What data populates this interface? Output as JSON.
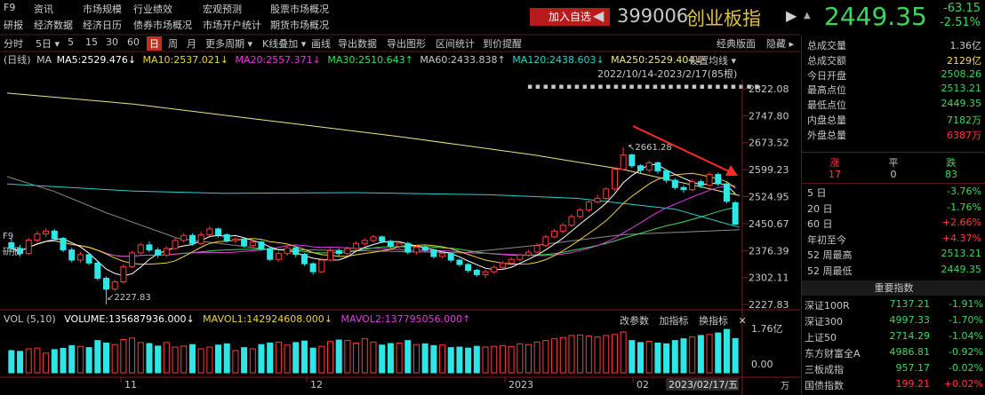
{
  "nav": {
    "col1": [
      "F9",
      "研报"
    ],
    "col2": [
      "资讯",
      "经济数据"
    ],
    "col3": [
      "市场规模",
      "经济日历"
    ],
    "col4": [
      "行业绩效",
      "债券市场概况"
    ],
    "col5": [
      "宏观预测",
      "市场开户统计"
    ],
    "col6": [
      "股票市场概况",
      "期货市场概况"
    ]
  },
  "header": {
    "add_watch": "加入自选",
    "prev_arrow": "◀",
    "next_arrow": "▶",
    "code": "399006",
    "name": "创业板指",
    "price": "2449.35",
    "change": "-63.15",
    "change_pct": "-2.51%",
    "bell": "▲"
  },
  "toolbar": {
    "items": [
      "分时",
      "5日 ▾",
      "5",
      "15",
      "30",
      "60",
      "日",
      "周",
      "月",
      "更多周期 ▾",
      "K线叠加 ▾",
      "画线",
      "导出数据",
      "导出图形",
      "区间统计",
      "到价提醒",
      "经典版面",
      "隐藏 ▸"
    ],
    "active": "日"
  },
  "ma": {
    "label": "(日线)",
    "ma": "MA",
    "ma5": "MA5:2529.476↓",
    "ma10": "MA10:2537.021↓",
    "ma20": "MA20:2557.371↓",
    "ma30": "MA30:2510.643↑",
    "ma60": "MA60:2433.838↑",
    "ma120": "MA120:2438.603↓",
    "ma250": "MA250:2529.404↓",
    "set_ma": "设置均线 ▾",
    "date_range": "2022/10/14-2023/2/17(85根)",
    "dots": "▪▪▪▪▪▪▪▪▪▪▪▪▪▪▪▪▪▪▪▪▪▪▪▪▪▪▪▪▪▪"
  },
  "f9_labels": [
    "F9",
    "研报"
  ],
  "price_axis": [
    "2822.08",
    "2747.80",
    "2673.52",
    "2599.23",
    "2524.95",
    "2450.67",
    "2376.39",
    "2302.11",
    "2227.83"
  ],
  "annotations": {
    "high": "2661.28",
    "low": "2227.83"
  },
  "time_axis": [
    "11",
    "12",
    "2023",
    "02"
  ],
  "date_tag": "2023/02/17/五",
  "volume": {
    "label": "VOL (5,10)",
    "vol": "VOLUME:135687936.000↓",
    "mavol1": "MAVOL1:142924608.000↓",
    "mavol2": "MAVOL2:137795056.000↑",
    "tools": [
      "改参数",
      "加指标",
      "换指标",
      "✕"
    ],
    "axis": [
      "1.76亿",
      "0.00"
    ],
    "axis_unit": "万"
  },
  "stats": [
    {
      "label": "总成交量",
      "value": "1.36亿",
      "color": "#c8c8c8"
    },
    {
      "label": "总成交额",
      "value": "2129亿",
      "color": "#ffd84a"
    },
    {
      "label": "今日开盘",
      "value": "2508.26",
      "color": "#3dd65b"
    },
    {
      "label": "最高点位",
      "value": "2513.21",
      "color": "#3dd65b"
    },
    {
      "label": "最低点位",
      "value": "2449.35",
      "color": "#3dd65b"
    },
    {
      "label": "内盘总量",
      "value": "7182万",
      "color": "#3dd65b"
    },
    {
      "label": "外盘总量",
      "value": "6387万",
      "color": "#ff3b3b"
    }
  ],
  "updown": {
    "head": [
      "涨",
      "平",
      "跌"
    ],
    "vals": [
      "17",
      "0",
      "83"
    ]
  },
  "perf": [
    {
      "label": "5 日",
      "value": "-3.76%",
      "color": "#3dd65b"
    },
    {
      "label": "20 日",
      "value": "-1.76%",
      "color": "#3dd65b"
    },
    {
      "label": "60 日",
      "value": "+2.66%",
      "color": "#ff3b3b"
    },
    {
      "label": "年初至今",
      "value": "+4.37%",
      "color": "#ff3b3b"
    },
    {
      "label": "52 周最高",
      "value": "2513.21",
      "color": "#3dd65b"
    },
    {
      "label": "52 周最低",
      "value": "2449.35",
      "color": "#3dd65b"
    }
  ],
  "index_title": "重要指数",
  "indices": [
    {
      "name": "深证100R",
      "price": "7137.21",
      "chg": "-1.91%",
      "color": "#3dd65b"
    },
    {
      "name": "深证300",
      "price": "4997.33",
      "chg": "-1.70%",
      "color": "#3dd65b"
    },
    {
      "name": "上证50",
      "price": "2714.29",
      "chg": "-1.04%",
      "color": "#3dd65b"
    },
    {
      "name": "东方财富全A",
      "price": "4986.81",
      "chg": "-0.92%",
      "color": "#3dd65b"
    },
    {
      "name": "三板成指",
      "price": "957.17",
      "chg": "-0.02%",
      "color": "#3dd65b"
    },
    {
      "name": "国债指数",
      "price": "199.21",
      "chg": "+0.02%",
      "color": "#ff3b3b"
    }
  ],
  "chart_data": {
    "type": "candlestick",
    "candles": [
      [
        2398,
        2382,
        2410,
        2372
      ],
      [
        2382,
        2368,
        2392,
        2360
      ],
      [
        2368,
        2405,
        2412,
        2364
      ],
      [
        2405,
        2422,
        2430,
        2398
      ],
      [
        2422,
        2430,
        2437,
        2414
      ],
      [
        2430,
        2410,
        2436,
        2403
      ],
      [
        2410,
        2378,
        2414,
        2372
      ],
      [
        2378,
        2350,
        2384,
        2344
      ],
      [
        2350,
        2365,
        2372,
        2342
      ],
      [
        2365,
        2342,
        2370,
        2336
      ],
      [
        2342,
        2300,
        2346,
        2294
      ],
      [
        2300,
        2270,
        2305,
        2228
      ],
      [
        2270,
        2290,
        2296,
        2264
      ],
      [
        2290,
        2332,
        2338,
        2286
      ],
      [
        2332,
        2370,
        2376,
        2328
      ],
      [
        2370,
        2392,
        2398,
        2366
      ],
      [
        2392,
        2378,
        2402,
        2372
      ],
      [
        2378,
        2364,
        2384,
        2356
      ],
      [
        2364,
        2382,
        2388,
        2358
      ],
      [
        2382,
        2404,
        2414,
        2378
      ],
      [
        2404,
        2418,
        2424,
        2398
      ],
      [
        2418,
        2396,
        2424,
        2390
      ],
      [
        2396,
        2420,
        2428,
        2392
      ],
      [
        2420,
        2436,
        2444,
        2416
      ],
      [
        2436,
        2420,
        2440,
        2412
      ],
      [
        2420,
        2404,
        2424,
        2398
      ],
      [
        2404,
        2408,
        2414,
        2396
      ],
      [
        2408,
        2390,
        2412,
        2384
      ],
      [
        2390,
        2400,
        2406,
        2384
      ],
      [
        2400,
        2382,
        2404,
        2376
      ],
      [
        2382,
        2352,
        2386,
        2348
      ],
      [
        2352,
        2368,
        2374,
        2346
      ],
      [
        2368,
        2384,
        2390,
        2362
      ],
      [
        2384,
        2366,
        2388,
        2358
      ],
      [
        2366,
        2340,
        2370,
        2334
      ],
      [
        2340,
        2318,
        2344,
        2310
      ],
      [
        2318,
        2350,
        2356,
        2314
      ],
      [
        2350,
        2376,
        2382,
        2346
      ],
      [
        2376,
        2368,
        2382,
        2362
      ],
      [
        2368,
        2382,
        2388,
        2362
      ],
      [
        2382,
        2396,
        2402,
        2376
      ],
      [
        2396,
        2404,
        2410,
        2390
      ],
      [
        2404,
        2414,
        2420,
        2398
      ],
      [
        2414,
        2402,
        2418,
        2396
      ],
      [
        2402,
        2388,
        2406,
        2382
      ],
      [
        2388,
        2396,
        2400,
        2382
      ],
      [
        2396,
        2372,
        2400,
        2366
      ],
      [
        2372,
        2386,
        2392,
        2366
      ],
      [
        2386,
        2378,
        2390,
        2372
      ],
      [
        2378,
        2360,
        2382,
        2354
      ],
      [
        2360,
        2368,
        2374,
        2354
      ],
      [
        2368,
        2350,
        2372,
        2344
      ],
      [
        2350,
        2338,
        2354,
        2332
      ],
      [
        2338,
        2322,
        2342,
        2316
      ],
      [
        2322,
        2310,
        2326,
        2304
      ],
      [
        2310,
        2318,
        2324,
        2300
      ],
      [
        2318,
        2330,
        2336,
        2312
      ],
      [
        2330,
        2342,
        2348,
        2326
      ],
      [
        2342,
        2352,
        2358,
        2336
      ],
      [
        2352,
        2364,
        2368,
        2348
      ],
      [
        2364,
        2372,
        2378,
        2360
      ],
      [
        2372,
        2390,
        2396,
        2368
      ],
      [
        2390,
        2414,
        2420,
        2386
      ],
      [
        2414,
        2430,
        2436,
        2410
      ],
      [
        2430,
        2446,
        2452,
        2424
      ],
      [
        2446,
        2470,
        2476,
        2440
      ],
      [
        2470,
        2488,
        2494,
        2466
      ],
      [
        2488,
        2510,
        2514,
        2482
      ],
      [
        2510,
        2520,
        2530,
        2506
      ],
      [
        2520,
        2546,
        2550,
        2514
      ],
      [
        2546,
        2600,
        2606,
        2540
      ],
      [
        2600,
        2640,
        2661,
        2596
      ],
      [
        2640,
        2610,
        2644,
        2604
      ],
      [
        2610,
        2598,
        2614,
        2590
      ],
      [
        2598,
        2618,
        2624,
        2592
      ],
      [
        2618,
        2596,
        2622,
        2588
      ],
      [
        2596,
        2570,
        2600,
        2562
      ],
      [
        2570,
        2550,
        2576,
        2544
      ],
      [
        2550,
        2544,
        2556,
        2536
      ],
      [
        2544,
        2566,
        2572,
        2540
      ],
      [
        2566,
        2556,
        2572,
        2548
      ],
      [
        2556,
        2586,
        2592,
        2552
      ],
      [
        2586,
        2560,
        2592,
        2554
      ],
      [
        2560,
        2512,
        2564,
        2506
      ],
      [
        2508,
        2449,
        2513,
        2449
      ]
    ],
    "volumes": [
      0.88,
      0.85,
      0.95,
      0.98,
      0.78,
      0.92,
      0.97,
      1.08,
      1.05,
      1.0,
      1.28,
      1.18,
      1.12,
      1.32,
      1.38,
      1.2,
      1.16,
      1.06,
      1.2,
      1.02,
      1.06,
      1.12,
      0.95,
      1.02,
      1.1,
      1.15,
      0.88,
      1.0,
      0.95,
      1.12,
      1.18,
      1.22,
      1.1,
      1.2,
      1.26,
      0.98,
      1.05,
      1.24,
      1.3,
      1.28,
      1.18,
      1.35,
      1.22,
      1.1,
      1.16,
      1.18,
      1.28,
      1.12,
      1.15,
      1.08,
      1.1,
      1.0,
      1.02,
      0.98,
      1.05,
      1.02,
      1.05,
      1.08,
      1.04,
      1.15,
      1.12,
      1.22,
      1.28,
      1.35,
      1.4,
      1.48,
      1.5,
      1.46,
      1.42,
      1.48,
      1.52,
      1.62,
      1.28,
      1.2,
      1.25,
      1.18,
      1.15,
      1.28,
      1.35,
      1.42,
      1.48,
      1.52,
      1.58,
      1.72,
      1.36
    ],
    "y_range": [
      2227.83,
      2822.08
    ],
    "vol_range": [
      0,
      1.76
    ]
  }
}
